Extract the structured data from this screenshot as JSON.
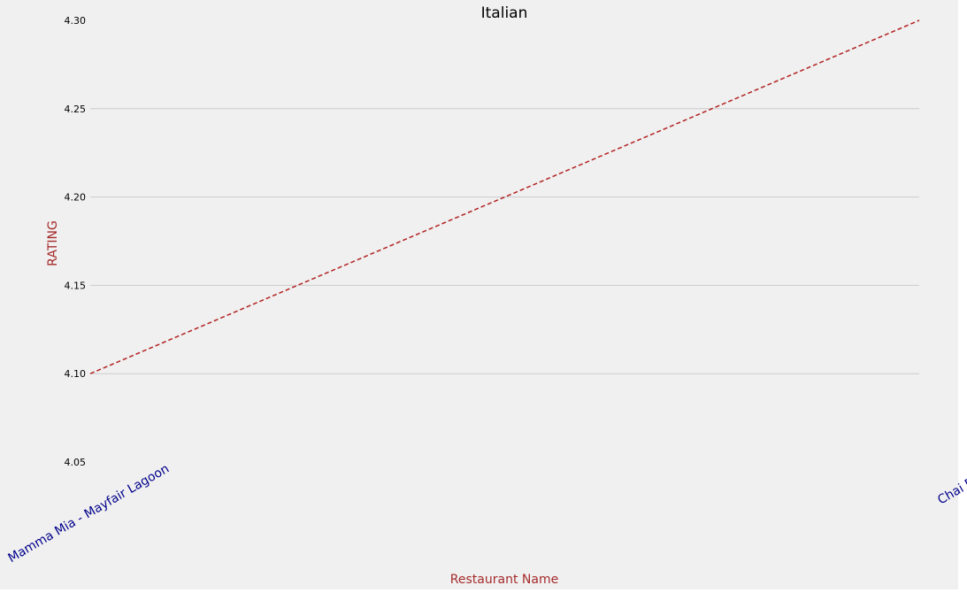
{
  "chart_data": {
    "type": "line",
    "title": "Italian",
    "xlabel": "Restaurant Name",
    "ylabel": "RATING",
    "categories": [
      "Mamma Mia - Mayfair Lagoon",
      "Chai Break"
    ],
    "series": [
      {
        "values": [
          4.1,
          4.3
        ]
      }
    ],
    "ylim": [
      4.05,
      4.3
    ],
    "yticks": [
      4.05,
      4.1,
      4.15,
      4.2,
      4.25,
      4.3
    ],
    "ytick_labels": [
      "4.05",
      "4.10",
      "4.15",
      "4.20",
      "4.25",
      "4.30"
    ],
    "grid": "horizontal",
    "colors": {
      "background": "#f0f0f0",
      "grid": "#cbcbcb",
      "line": "#b22222",
      "xtick_text": "#00008b",
      "axis_label": "#a52a2a"
    },
    "line_style": "dashed"
  }
}
